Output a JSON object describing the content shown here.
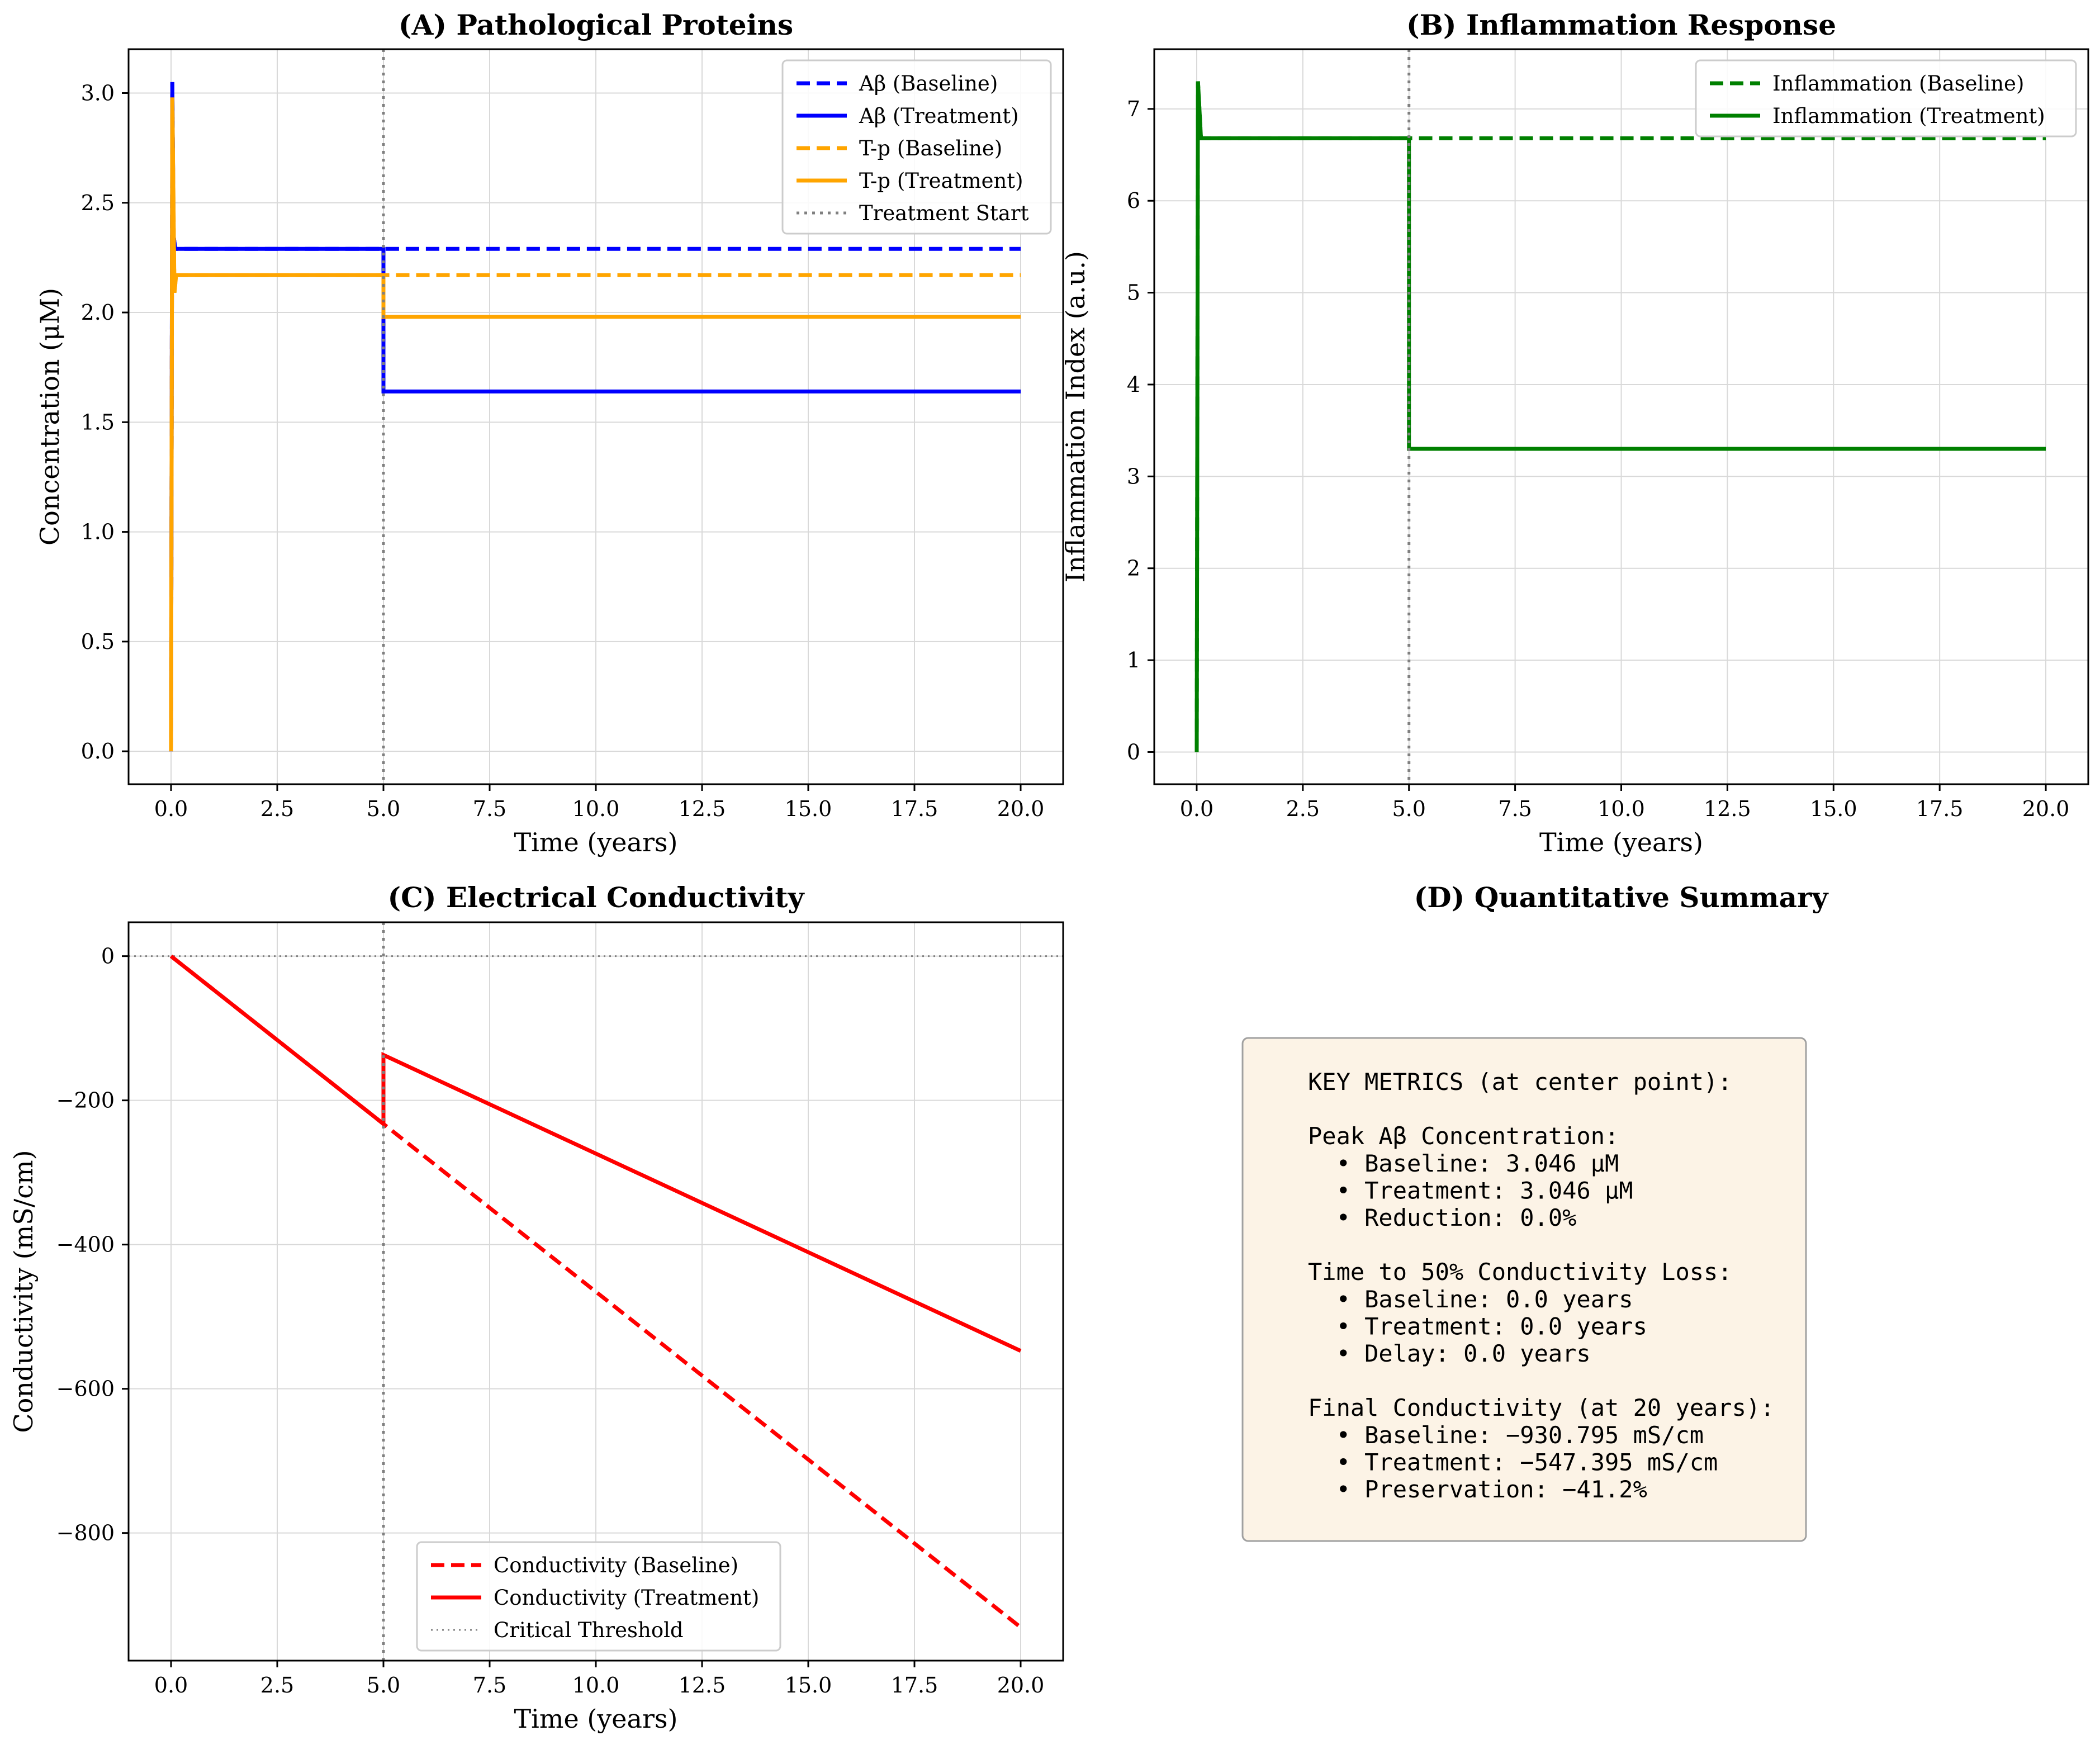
{
  "chart_data": [
    {
      "id": "A",
      "type": "line",
      "title": "(A) Pathological Proteins",
      "xlabel": "Time (years)",
      "ylabel": "Concentration (μM)",
      "xlim": [
        -1,
        21
      ],
      "ylim": [
        -0.15,
        3.2
      ],
      "xticks": [
        0,
        2.5,
        5,
        7.5,
        10,
        12.5,
        15,
        17.5,
        20
      ],
      "xtick_labels": [
        "0.0",
        "2.5",
        "5.0",
        "7.5",
        "10.0",
        "12.5",
        "15.0",
        "17.5",
        "20.0"
      ],
      "yticks": [
        0,
        0.5,
        1,
        1.5,
        2,
        2.5,
        3
      ],
      "ytick_labels": [
        "0.0",
        "0.5",
        "1.0",
        "1.5",
        "2.0",
        "2.5",
        "3.0"
      ],
      "grid": true,
      "legend_loc": "top-right",
      "vline_x": 5,
      "series": [
        {
          "name": "Aβ (Baseline)",
          "color": "#0000ff",
          "dash": "dashed",
          "x": [
            0,
            0.03,
            0.06,
            0.1,
            0.2,
            20
          ],
          "y": [
            0,
            3.05,
            2.35,
            2.29,
            2.29,
            2.29
          ]
        },
        {
          "name": "Aβ (Treatment)",
          "color": "#0000ff",
          "dash": "solid",
          "x": [
            0,
            0.03,
            0.06,
            0.1,
            0.2,
            5,
            5,
            20
          ],
          "y": [
            0,
            3.05,
            2.35,
            2.29,
            2.29,
            2.29,
            1.64,
            1.64
          ]
        },
        {
          "name": "T-p (Baseline)",
          "color": "#ffa500",
          "dash": "dashed",
          "x": [
            0,
            0.03,
            0.08,
            0.12,
            0.2,
            20
          ],
          "y": [
            0,
            2.98,
            2.09,
            2.17,
            2.17,
            2.17
          ]
        },
        {
          "name": "T-p (Treatment)",
          "color": "#ffa500",
          "dash": "solid",
          "x": [
            0,
            0.03,
            0.08,
            0.12,
            0.2,
            5,
            5,
            20
          ],
          "y": [
            0,
            2.98,
            2.09,
            2.17,
            2.17,
            2.17,
            1.98,
            1.98
          ]
        },
        {
          "name": "Treatment Start",
          "color": "#808080",
          "dash": "dotted",
          "legend_only": true
        }
      ]
    },
    {
      "id": "B",
      "type": "line",
      "title": "(B) Inflammation Response",
      "xlabel": "Time (years)",
      "ylabel": "Inflammation Index (a.u.)",
      "xlim": [
        -1,
        21
      ],
      "ylim": [
        -0.35,
        7.65
      ],
      "xticks": [
        0,
        2.5,
        5,
        7.5,
        10,
        12.5,
        15,
        17.5,
        20
      ],
      "xtick_labels": [
        "0.0",
        "2.5",
        "5.0",
        "7.5",
        "10.0",
        "12.5",
        "15.0",
        "17.5",
        "20.0"
      ],
      "yticks": [
        0,
        1,
        2,
        3,
        4,
        5,
        6,
        7
      ],
      "ytick_labels": [
        "0",
        "1",
        "2",
        "3",
        "4",
        "5",
        "6",
        "7"
      ],
      "grid": true,
      "legend_loc": "top-right",
      "vline_x": 5,
      "series": [
        {
          "name": "Inflammation (Baseline)",
          "color": "#008000",
          "dash": "dashed",
          "x": [
            0,
            0.03,
            0.1,
            0.2,
            20
          ],
          "y": [
            0,
            7.3,
            6.68,
            6.68,
            6.68
          ]
        },
        {
          "name": "Inflammation (Treatment)",
          "color": "#008000",
          "dash": "solid",
          "x": [
            0,
            0.03,
            0.1,
            0.2,
            5,
            5,
            20
          ],
          "y": [
            0,
            7.3,
            6.68,
            6.68,
            6.68,
            3.3,
            3.3
          ]
        }
      ]
    },
    {
      "id": "C",
      "type": "line",
      "title": "(C) Electrical Conductivity",
      "xlabel": "Time (years)",
      "ylabel": "Conductivity (mS/cm)",
      "xlim": [
        -1,
        21
      ],
      "ylim": [
        -977,
        47
      ],
      "xticks": [
        0,
        2.5,
        5,
        7.5,
        10,
        12.5,
        15,
        17.5,
        20
      ],
      "xtick_labels": [
        "0.0",
        "2.5",
        "5.0",
        "7.5",
        "10.0",
        "12.5",
        "15.0",
        "17.5",
        "20.0"
      ],
      "yticks": [
        0,
        -200,
        -400,
        -600,
        -800
      ],
      "ytick_labels": [
        "0",
        "−200",
        "−400",
        "−600",
        "−800"
      ],
      "grid": true,
      "legend_loc": "lower-center",
      "vline_x": 5,
      "hline_y": 0,
      "series": [
        {
          "name": "Conductivity (Baseline)",
          "color": "#ff0000",
          "dash": "dashed",
          "x": [
            0,
            20
          ],
          "y": [
            0,
            -930.795
          ]
        },
        {
          "name": "Conductivity (Treatment)",
          "color": "#ff0000",
          "dash": "solid",
          "x": [
            0,
            5,
            5,
            20
          ],
          "y": [
            0,
            -232.7,
            -137,
            -547.395
          ]
        },
        {
          "name": "Critical Threshold",
          "color": "#808080",
          "dash": "dotted",
          "legend_only": true
        }
      ]
    }
  ],
  "summary": {
    "title": "(D) Quantitative Summary",
    "lines": [
      "KEY METRICS (at center point):",
      "",
      "Peak Aβ Concentration:",
      "  • Baseline: 3.046 μM",
      "  • Treatment: 3.046 μM",
      "  • Reduction: 0.0%",
      "",
      "Time to 50% Conductivity Loss:",
      "  • Baseline: 0.0 years",
      "  • Treatment: 0.0 years",
      "  • Delay: 0.0 years",
      "",
      "Final Conductivity (at 20 years):",
      "  • Baseline: −930.795 mS/cm",
      "  • Treatment: −547.395 mS/cm",
      "  • Preservation: −41.2%"
    ],
    "box_color": "#fcf3e6"
  }
}
